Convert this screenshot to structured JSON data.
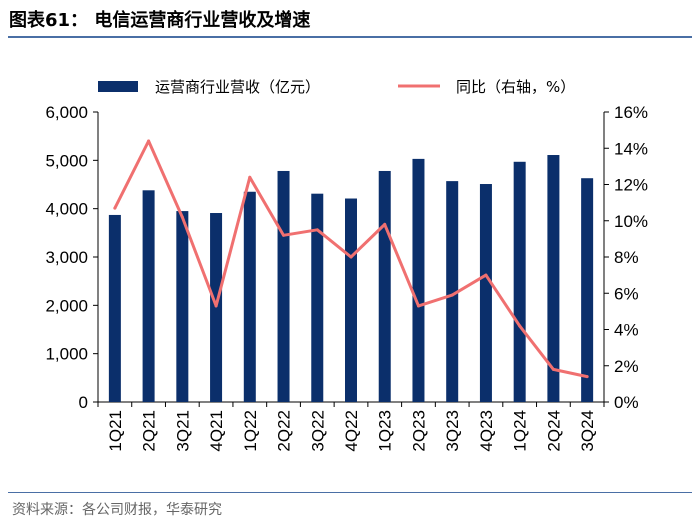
{
  "figure": {
    "title": "图表61：  电信运营商行业营收及增速",
    "source": "资料来源：各公司财报，华泰研究"
  },
  "chart_data": {
    "type": "bar",
    "categories": [
      "1Q21",
      "2Q21",
      "3Q21",
      "4Q21",
      "1Q22",
      "2Q22",
      "3Q22",
      "4Q22",
      "1Q23",
      "2Q23",
      "3Q23",
      "4Q23",
      "1Q24",
      "2Q24",
      "3Q24"
    ],
    "series": [
      {
        "name": "运营商行业营收（亿元）",
        "type": "bar",
        "axis": "left",
        "color": "#0b2f6b",
        "values": [
          3870,
          4380,
          3950,
          3910,
          4350,
          4780,
          4310,
          4210,
          4780,
          5030,
          4570,
          4510,
          4970,
          5110,
          4630
        ]
      },
      {
        "name": "同比（右轴，%）",
        "type": "line",
        "axis": "right",
        "color": "#f07070",
        "values": [
          10.7,
          14.4,
          10.2,
          5.3,
          12.4,
          9.2,
          9.5,
          8.0,
          9.8,
          5.3,
          5.9,
          7.0,
          4.2,
          1.8,
          1.4
        ]
      }
    ],
    "y_left": {
      "min": 0,
      "max": 6000,
      "ticks": [
        "0",
        "1,000",
        "2,000",
        "3,000",
        "4,000",
        "5,000",
        "6,000"
      ]
    },
    "y_right": {
      "min": 0,
      "max": 16,
      "ticks": [
        "0%",
        "2%",
        "4%",
        "6%",
        "8%",
        "10%",
        "12%",
        "14%",
        "16%"
      ]
    },
    "grid": false,
    "legend_position": "top"
  }
}
